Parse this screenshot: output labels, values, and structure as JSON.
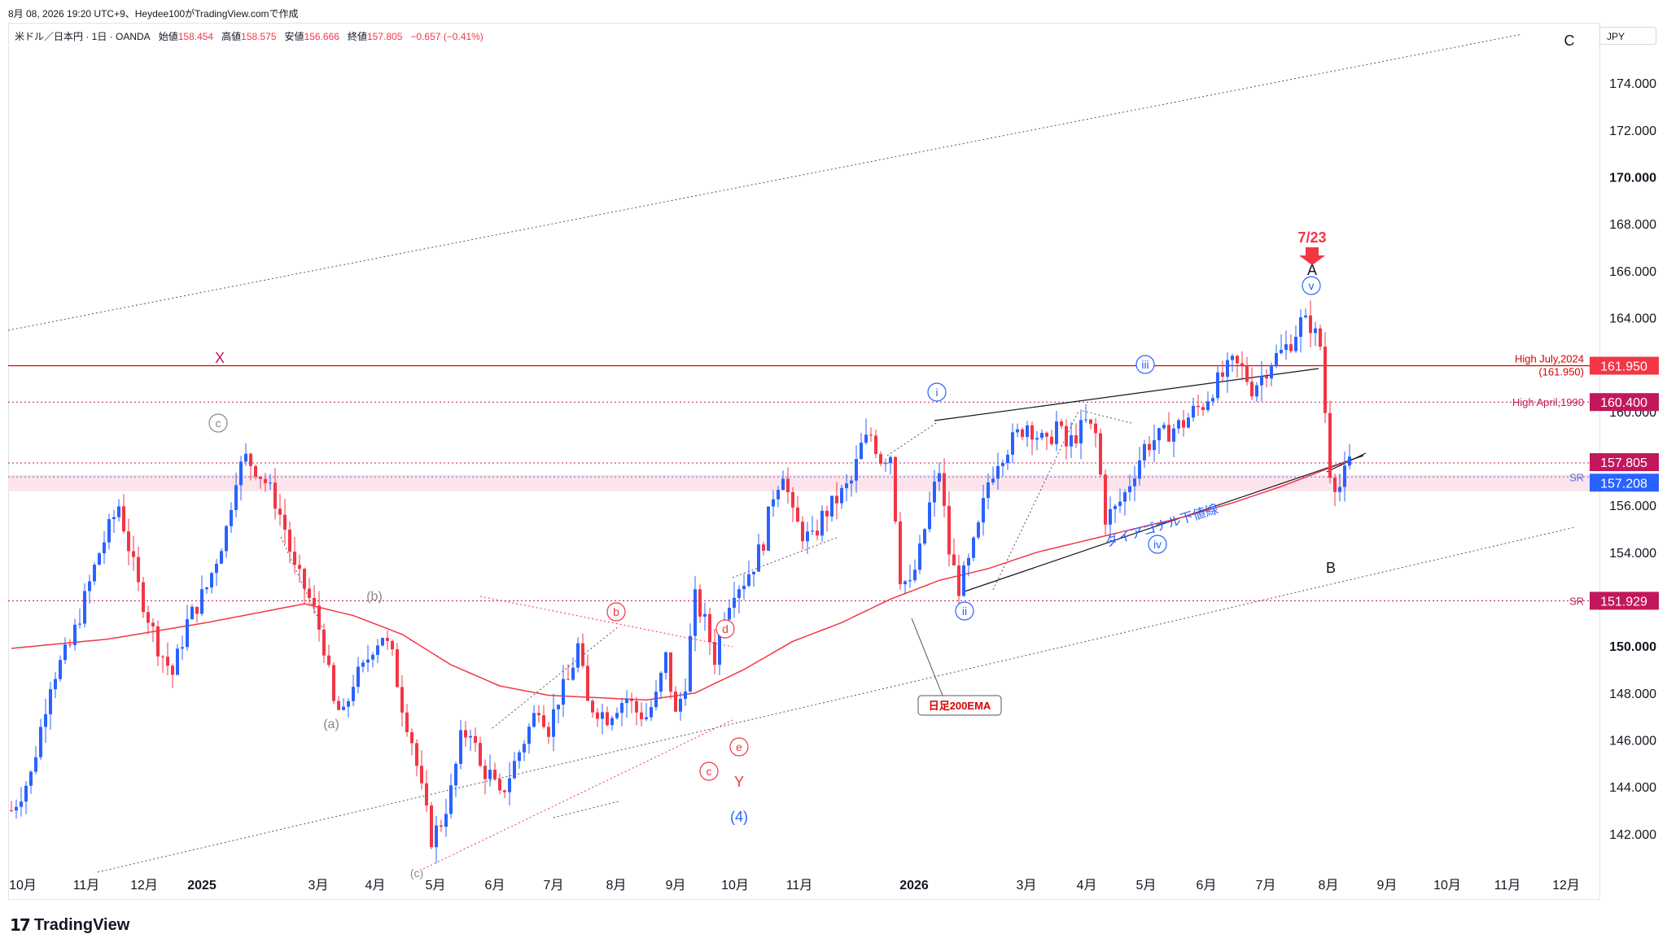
{
  "header": {
    "caption": "8月 08, 2026 19:20 UTC+9、Heydee100がTradingView.comで作成",
    "symbol": "米ドル／日本円 · 1日 · OANDA",
    "open_label": "始値",
    "open": "158.454",
    "high_label": "高値",
    "high": "158.575",
    "low_label": "安値",
    "low": "156.666",
    "close_label": "終値",
    "close": "157.805",
    "change": "−0.657 (−0.41%)"
  },
  "currency": "JPY",
  "brand": "TradingView",
  "colors": {
    "up": "#2962ff",
    "down": "#f23645",
    "ema": "#f23645",
    "level_red": "#d50000",
    "level_pink": "#c2185b",
    "zone_fill": "#fce4ec",
    "wave_blue": "#2962ff"
  },
  "chart_data": {
    "type": "candlestick",
    "symbol": "USDJPY",
    "timeframe": "1D",
    "y_range": [
      140.5,
      176.5
    ],
    "y_ticks": [
      "142.000",
      "144.000",
      "146.000",
      "148.000",
      "150.000",
      "152.000",
      "154.000",
      "156.000",
      "158.000",
      "160.000",
      "162.000",
      "164.000",
      "166.000",
      "168.000",
      "170.000",
      "172.000",
      "174.000"
    ],
    "x_ticks": [
      "10月",
      "11月",
      "12月",
      "2025",
      "3月",
      "4月",
      "5月",
      "6月",
      "7月",
      "8月",
      "9月",
      "10月",
      "11月",
      "2026",
      "3月",
      "4月",
      "5月",
      "6月",
      "7月",
      "8月",
      "9月",
      "10月",
      "11月",
      "12月"
    ],
    "x_tick_bold": [
      "2025",
      "2026"
    ],
    "price_path": [
      [
        0,
        143.0
      ],
      [
        4,
        144.5
      ],
      [
        8,
        148.5
      ],
      [
        12,
        150.0
      ],
      [
        18,
        154.0
      ],
      [
        22,
        156.0
      ],
      [
        26,
        152.5
      ],
      [
        30,
        150.0
      ],
      [
        33,
        148.8
      ],
      [
        36,
        151.0
      ],
      [
        40,
        152.5
      ],
      [
        44,
        155.0
      ],
      [
        46,
        157.3
      ],
      [
        48,
        158.0
      ],
      [
        50,
        157.6
      ],
      [
        52,
        157.0
      ],
      [
        54,
        156.2
      ],
      [
        56,
        155.0
      ],
      [
        58,
        153.2
      ],
      [
        60,
        152.5
      ],
      [
        62,
        151.5
      ],
      [
        64,
        150.0
      ],
      [
        66,
        147.5
      ],
      [
        68,
        147.0
      ],
      [
        70,
        148.5
      ],
      [
        72,
        149.0
      ],
      [
        74,
        150.0
      ],
      [
        76,
        150.5
      ],
      [
        78,
        149.5
      ],
      [
        80,
        147.5
      ],
      [
        82,
        146.0
      ],
      [
        84,
        143.8
      ],
      [
        86,
        141.8
      ],
      [
        88,
        142.5
      ],
      [
        90,
        143.8
      ],
      [
        92,
        146.0
      ],
      [
        94,
        146.5
      ],
      [
        96,
        144.8
      ],
      [
        98,
        144.5
      ],
      [
        100,
        143.5
      ],
      [
        102,
        144.5
      ],
      [
        104,
        145.5
      ],
      [
        106,
        146.5
      ],
      [
        108,
        147.5
      ],
      [
        110,
        146.5
      ],
      [
        112,
        147.8
      ],
      [
        114,
        148.5
      ],
      [
        116,
        150.0
      ],
      [
        118,
        147.5
      ],
      [
        120,
        147.3
      ],
      [
        122,
        147.0
      ],
      [
        124,
        147.5
      ],
      [
        126,
        147.8
      ],
      [
        128,
        147.2
      ],
      [
        130,
        147.0
      ],
      [
        132,
        147.8
      ],
      [
        134,
        149.5
      ],
      [
        136,
        147.0
      ],
      [
        138,
        148.5
      ],
      [
        140,
        152.0
      ],
      [
        142,
        151.0
      ],
      [
        144,
        149.5
      ],
      [
        146,
        151.5
      ],
      [
        148,
        152.5
      ],
      [
        150,
        152.8
      ],
      [
        152,
        153.5
      ],
      [
        154,
        154.5
      ],
      [
        156,
        156.5
      ],
      [
        158,
        157.5
      ],
      [
        160,
        155.5
      ],
      [
        162,
        154.8
      ],
      [
        164,
        154.5
      ],
      [
        166,
        155.5
      ],
      [
        168,
        156.0
      ],
      [
        170,
        156.5
      ],
      [
        172,
        157.0
      ],
      [
        174,
        158.5
      ],
      [
        176,
        159.0
      ],
      [
        178,
        158.0
      ],
      [
        180,
        158.2
      ],
      [
        182,
        153.0
      ],
      [
        184,
        152.5
      ],
      [
        186,
        154.0
      ],
      [
        188,
        156.0
      ],
      [
        190,
        157.5
      ],
      [
        192,
        154.0
      ],
      [
        194,
        152.5
      ],
      [
        196,
        153.5
      ],
      [
        198,
        155.0
      ],
      [
        200,
        157.0
      ],
      [
        202,
        158.0
      ],
      [
        204,
        158.5
      ],
      [
        206,
        159.0
      ],
      [
        208,
        159.5
      ],
      [
        210,
        159.0
      ],
      [
        212,
        158.5
      ],
      [
        214,
        159.5
      ],
      [
        216,
        158.5
      ],
      [
        218,
        159.0
      ],
      [
        220,
        159.5
      ],
      [
        222,
        159.0
      ],
      [
        224,
        155.5
      ],
      [
        226,
        155.8
      ],
      [
        228,
        156.5
      ],
      [
        230,
        157.5
      ],
      [
        232,
        158.5
      ],
      [
        234,
        158.8
      ],
      [
        236,
        159.0
      ],
      [
        238,
        159.3
      ],
      [
        240,
        159.5
      ],
      [
        242,
        160.0
      ],
      [
        244,
        160.3
      ],
      [
        246,
        161.0
      ],
      [
        248,
        161.5
      ],
      [
        250,
        162.0
      ],
      [
        252,
        161.8
      ],
      [
        254,
        161.0
      ],
      [
        256,
        161.5
      ],
      [
        258,
        162.2
      ],
      [
        260,
        162.5
      ],
      [
        262,
        163.0
      ],
      [
        264,
        163.8
      ],
      [
        266,
        163.7
      ],
      [
        268,
        162.8
      ],
      [
        269,
        160.0
      ],
      [
        270,
        157.5
      ],
      [
        271,
        157.0
      ],
      [
        272,
        156.8
      ],
      [
        273,
        157.3
      ],
      [
        274,
        157.8
      ]
    ],
    "ema200_path": [
      [
        0,
        149.9
      ],
      [
        20,
        150.3
      ],
      [
        40,
        151.0
      ],
      [
        50,
        151.4
      ],
      [
        60,
        151.8
      ],
      [
        70,
        151.3
      ],
      [
        80,
        150.5
      ],
      [
        90,
        149.2
      ],
      [
        100,
        148.3
      ],
      [
        110,
        147.9
      ],
      [
        120,
        147.8
      ],
      [
        130,
        147.7
      ],
      [
        140,
        148.0
      ],
      [
        150,
        149.0
      ],
      [
        160,
        150.2
      ],
      [
        170,
        151.0
      ],
      [
        180,
        152.0
      ],
      [
        190,
        152.8
      ],
      [
        200,
        153.3
      ],
      [
        210,
        154.0
      ],
      [
        220,
        154.5
      ],
      [
        230,
        155.0
      ],
      [
        240,
        155.5
      ],
      [
        250,
        156.1
      ],
      [
        260,
        156.8
      ],
      [
        270,
        157.6
      ],
      [
        274,
        157.9
      ]
    ],
    "horizontal_levels": [
      {
        "price": 161.95,
        "style": "solid",
        "color": "#d50000",
        "label": "High July,2024",
        "sublabel": "(161.950)",
        "tag": "161.950"
      },
      {
        "price": 160.4,
        "style": "dotted",
        "color": "#c2185b",
        "label": "High April,1990",
        "tag": "160.400"
      },
      {
        "price": 157.805,
        "style": "dotted",
        "color": "#c2185b",
        "tag": "157.805"
      },
      {
        "price": 157.208,
        "style": "dotted",
        "color": "#5b6bd8",
        "label": "SR",
        "tag": "157.208"
      },
      {
        "price": 151.929,
        "style": "dotted",
        "color": "#c2185b",
        "label": "SR",
        "tag": "151.929"
      }
    ],
    "sr_zone": [
      156.6,
      157.3
    ],
    "ema_label": "日足200EMA",
    "trendline_label": "ダイアゴナル下値線",
    "wave_labels": [
      {
        "text": "X",
        "color": "#c2185b"
      },
      {
        "text": "c",
        "color": "#888"
      },
      {
        "text": "a",
        "color": "#888"
      },
      {
        "text": "(b)",
        "color": "#888"
      },
      {
        "text": "(c)",
        "color": "#888"
      },
      {
        "text": "b",
        "color": "#f23645"
      },
      {
        "text": "c",
        "color": "#f23645"
      },
      {
        "text": "d",
        "color": "#f23645"
      },
      {
        "text": "e",
        "color": "#f23645"
      },
      {
        "text": "Y",
        "color": "#f23645"
      },
      {
        "text": "(4)",
        "color": "#2962ff"
      },
      {
        "text": "i",
        "color": "#2962ff"
      },
      {
        "text": "ii",
        "color": "#2962ff"
      },
      {
        "text": "iii",
        "color": "#2962ff"
      },
      {
        "text": "iv",
        "color": "#2962ff"
      },
      {
        "text": "v",
        "color": "#2962ff"
      },
      {
        "text": "A",
        "color": "#131722"
      },
      {
        "text": "B",
        "color": "#131722"
      },
      {
        "text": "C",
        "color": "#131722"
      },
      {
        "text": "7/23",
        "color": "#f23645"
      }
    ]
  }
}
